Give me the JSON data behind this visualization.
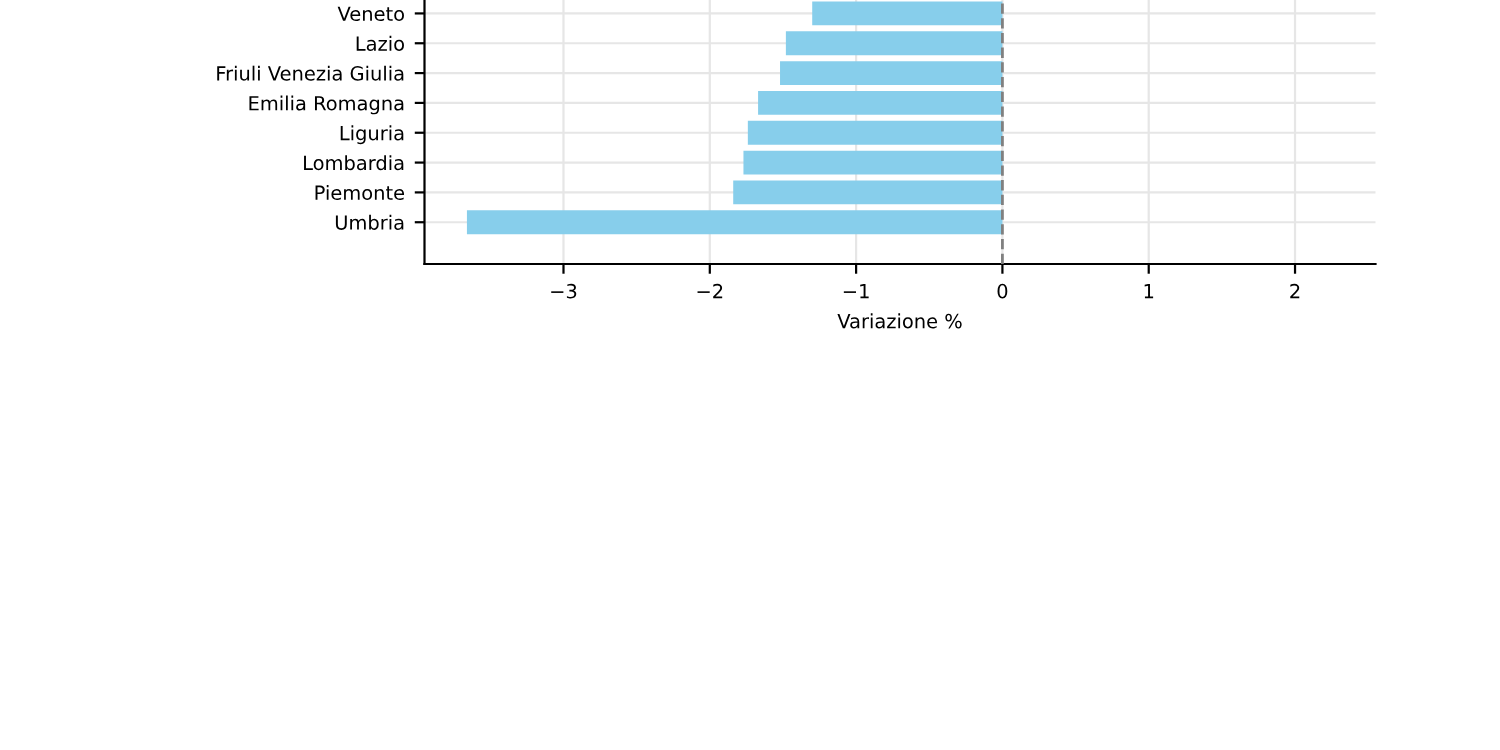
{
  "chart_data": {
    "type": "bar",
    "orientation": "horizontal",
    "xlabel": "Variazione %",
    "categories": [
      "Veneto",
      "Lazio",
      "Friuli Venezia Giulia",
      "Emilia Romagna",
      "Liguria",
      "Lombardia",
      "Piemonte",
      "Umbria"
    ],
    "values": [
      -1.3,
      -1.48,
      -1.52,
      -1.67,
      -1.74,
      -1.77,
      -1.84,
      -3.66
    ],
    "color": "#87ceeb",
    "xlim": [
      -3.95,
      2.55
    ],
    "xticks": [
      {
        "value": -3,
        "label": "−3"
      },
      {
        "value": -2,
        "label": "−2"
      },
      {
        "value": -1,
        "label": "−1"
      },
      0,
      1,
      2
    ],
    "grid": true,
    "ref_lines": [
      {
        "axis": "x",
        "value": 0,
        "color": "#808080",
        "line_style": "dashed"
      }
    ]
  }
}
